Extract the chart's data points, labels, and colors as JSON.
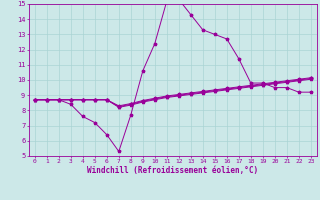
{
  "xlabel": "Windchill (Refroidissement éolien,°C)",
  "xlim": [
    -0.5,
    23.5
  ],
  "ylim": [
    5,
    15
  ],
  "xticks": [
    0,
    1,
    2,
    3,
    4,
    5,
    6,
    7,
    8,
    9,
    10,
    11,
    12,
    13,
    14,
    15,
    16,
    17,
    18,
    19,
    20,
    21,
    22,
    23
  ],
  "yticks": [
    5,
    6,
    7,
    8,
    9,
    10,
    11,
    12,
    13,
    14,
    15
  ],
  "bg_color": "#cce8e8",
  "line_color": "#990099",
  "grid_color": "#aad4d4",
  "lines": [
    {
      "x": [
        0,
        1,
        2,
        3,
        4,
        5,
        6,
        7,
        8,
        9,
        10,
        11,
        12,
        13,
        14,
        15,
        16,
        17,
        18,
        19,
        20,
        21,
        22,
        23
      ],
      "y": [
        8.7,
        8.7,
        8.7,
        8.4,
        7.6,
        7.2,
        6.4,
        5.3,
        7.7,
        10.6,
        12.4,
        15.2,
        15.3,
        14.3,
        13.3,
        13.0,
        12.7,
        11.4,
        9.8,
        9.8,
        9.5,
        9.5,
        9.2,
        9.2
      ]
    },
    {
      "x": [
        0,
        1,
        2,
        3,
        4,
        5,
        6,
        7,
        8,
        9,
        10,
        11,
        12,
        13,
        14,
        15,
        16,
        17,
        18,
        19,
        20,
        21,
        22,
        23
      ],
      "y": [
        8.7,
        8.7,
        8.7,
        8.7,
        8.7,
        8.7,
        8.7,
        8.2,
        8.35,
        8.55,
        8.7,
        8.85,
        8.95,
        9.05,
        9.15,
        9.25,
        9.35,
        9.45,
        9.55,
        9.65,
        9.75,
        9.85,
        9.95,
        10.05
      ]
    },
    {
      "x": [
        0,
        1,
        2,
        3,
        4,
        5,
        6,
        7,
        8,
        9,
        10,
        11,
        12,
        13,
        14,
        15,
        16,
        17,
        18,
        19,
        20,
        21,
        22,
        23
      ],
      "y": [
        8.7,
        8.7,
        8.7,
        8.7,
        8.7,
        8.7,
        8.7,
        8.25,
        8.4,
        8.6,
        8.75,
        8.9,
        9.0,
        9.1,
        9.2,
        9.3,
        9.4,
        9.5,
        9.6,
        9.7,
        9.8,
        9.9,
        10.0,
        10.1
      ]
    },
    {
      "x": [
        0,
        1,
        2,
        3,
        4,
        5,
        6,
        7,
        8,
        9,
        10,
        11,
        12,
        13,
        14,
        15,
        16,
        17,
        18,
        19,
        20,
        21,
        22,
        23
      ],
      "y": [
        8.7,
        8.7,
        8.7,
        8.7,
        8.7,
        8.7,
        8.7,
        8.3,
        8.45,
        8.65,
        8.8,
        8.95,
        9.05,
        9.15,
        9.25,
        9.35,
        9.45,
        9.55,
        9.65,
        9.75,
        9.85,
        9.95,
        10.05,
        10.15
      ]
    }
  ]
}
